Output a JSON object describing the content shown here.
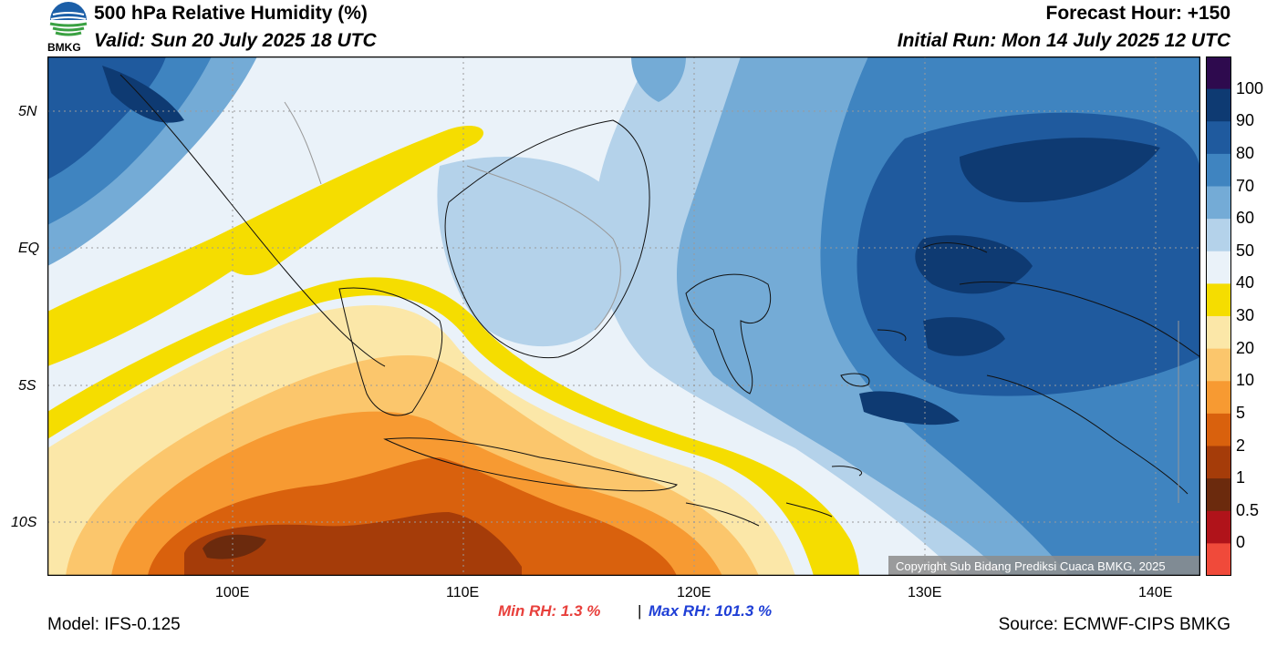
{
  "header": {
    "title": "500 hPa Relative Humidity (%)",
    "valid": "Valid: Sun 20 July 2025 18 UTC",
    "forecast_hour": "Forecast Hour: +150",
    "initial_run": "Initial Run: Mon 14 July 2025 12 UTC"
  },
  "logo": {
    "text": "BMKG"
  },
  "map": {
    "lat_labels": [
      "5N",
      "EQ",
      "5S",
      "10S"
    ],
    "lon_labels": [
      "100E",
      "110E",
      "120E",
      "130E",
      "140E"
    ],
    "copyright": "Copyright Sub Bidang Prediksi Cuaca BMKG, 2025"
  },
  "colorbar": {
    "levels": [
      "100",
      "90",
      "80",
      "70",
      "60",
      "50",
      "40",
      "30",
      "20",
      "10",
      "5",
      "2",
      "1",
      "0.5",
      "0"
    ],
    "colors": [
      "#2e0a4e",
      "#0e3a72",
      "#1f5a9e",
      "#3f84c0",
      "#74abd6",
      "#b4d2ea",
      "#eaf2f9",
      "#f5dd00",
      "#fbe7a8",
      "#fbc66c",
      "#f79a32",
      "#d9610d",
      "#a53c09",
      "#6b2a0d",
      "#b0131a",
      "#f04a3a"
    ]
  },
  "stats": {
    "min_label": "Min RH:   1.3 %",
    "separator": "|",
    "max_label": "Max RH: 101.3 %"
  },
  "footer": {
    "model": "Model: IFS-0.125",
    "source": "Source: ECMWF-CIPS BMKG"
  }
}
